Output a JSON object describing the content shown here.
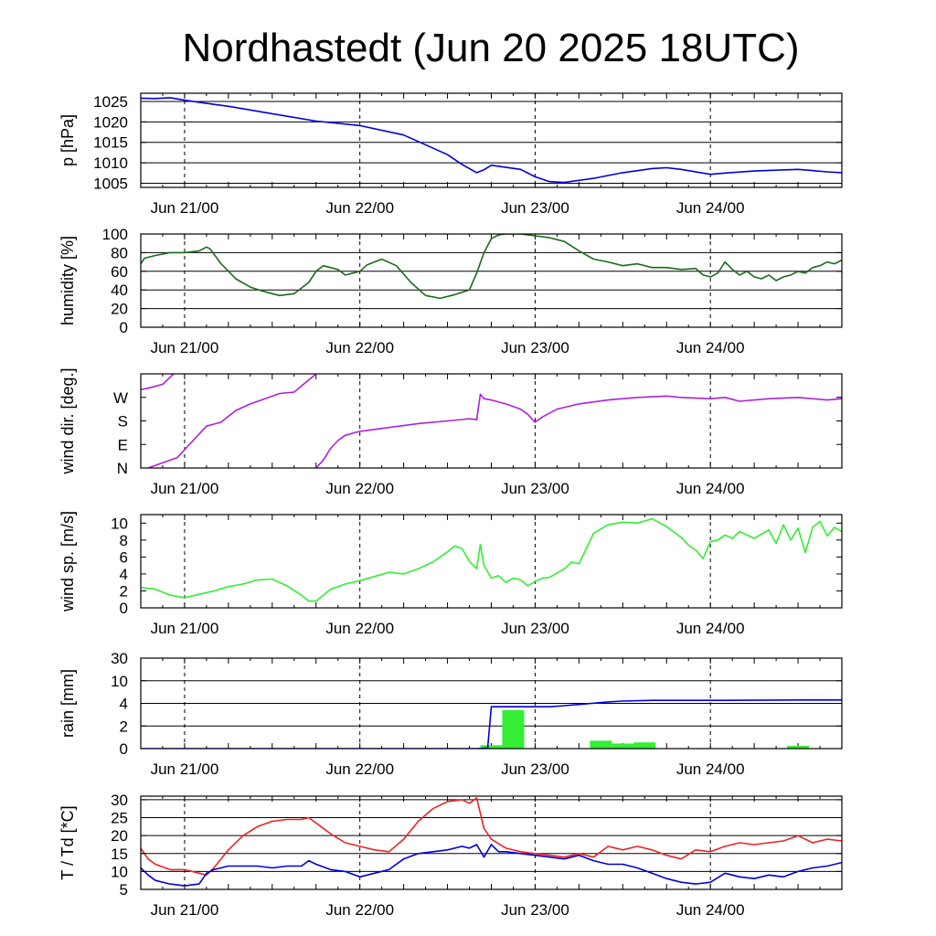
{
  "chart_data": {
    "title": "Nordhastedt (Jun 20 2025 18UTC)",
    "type": "line",
    "x_unit": "hours since Jun 20 18UTC",
    "x_range": [
      0,
      96
    ],
    "x_tick_labels": [
      {
        "x": 6,
        "label": "Jun 21/00"
      },
      {
        "x": 30,
        "label": "Jun 22/00"
      },
      {
        "x": 54,
        "label": "Jun 23/00"
      },
      {
        "x": 78,
        "label": "Jun 24/00"
      }
    ],
    "panels": [
      {
        "id": "pressure",
        "ylabel": "p [hPa]",
        "ylim": [
          1004,
          1027
        ],
        "yticks": [
          1005,
          1010,
          1015,
          1020,
          1025
        ],
        "ytick_labels": [
          "1005",
          "1010",
          "1015",
          "1020",
          "1025"
        ],
        "hgrid": [
          1005,
          1010,
          1015,
          1020,
          1025
        ],
        "series": [
          {
            "color": "#0000dd",
            "x": [
              0,
              2,
              4,
              6,
              8,
              12,
              18,
              24,
              30,
              36,
              42,
              44,
              46,
              47,
              48,
              52,
              54,
              56,
              58,
              62,
              66,
              70,
              72,
              74,
              78,
              80,
              84,
              90,
              94,
              96
            ],
            "y": [
              1025.8,
              1025.7,
              1025.9,
              1025.3,
              1024.8,
              1023.8,
              1022.0,
              1020.2,
              1019.1,
              1016.8,
              1012.0,
              1009.6,
              1007.6,
              1008.3,
              1009.4,
              1008.4,
              1006.6,
              1005.4,
              1005.2,
              1006.2,
              1007.6,
              1008.6,
              1008.8,
              1008.4,
              1007.2,
              1007.5,
              1008.0,
              1008.4,
              1007.8,
              1007.6
            ]
          }
        ]
      },
      {
        "id": "humidity",
        "ylabel": "humidity [%]",
        "ylim": [
          0,
          100
        ],
        "yticks": [
          0,
          20,
          40,
          60,
          80,
          100
        ],
        "ytick_labels": [
          "0",
          "20",
          "40",
          "60",
          "80",
          "100"
        ],
        "hgrid": [
          20,
          40,
          60,
          80,
          100
        ],
        "series": [
          {
            "color": "#1a6b1a",
            "x": [
              0,
              0.5,
              2,
              4,
              6,
              8,
              9,
              9.5,
              11,
              13,
              15,
              17,
              19,
              21,
              23,
              24,
              25,
              27,
              28,
              30,
              31,
              33,
              35,
              37,
              39,
              41,
              43,
              45,
              46,
              47,
              48,
              49,
              50,
              52,
              54,
              56,
              58,
              60,
              62,
              64,
              66,
              68,
              70,
              72,
              74,
              76,
              77,
              78,
              79,
              80,
              81,
              82,
              83,
              84,
              85,
              86,
              87,
              88,
              89,
              90,
              91,
              92,
              93,
              94,
              95,
              96
            ],
            "y": [
              68,
              74,
              77,
              80,
              80,
              82,
              86,
              84,
              68,
              52,
              43,
              38,
              34,
              36,
              48,
              60,
              66,
              62,
              56,
              60,
              67,
              73,
              66,
              48,
              34,
              31,
              35,
              40,
              58,
              80,
              95,
              99,
              100,
              100,
              98,
              96,
              92,
              82,
              73,
              70,
              66,
              68,
              64,
              64,
              62,
              63,
              56,
              54,
              58,
              70,
              62,
              56,
              60,
              54,
              52,
              56,
              50,
              54,
              56,
              60,
              58,
              64,
              66,
              70,
              68,
              72
            ]
          }
        ]
      },
      {
        "id": "wind_direction",
        "ylabel": "wind dir. [deg.]",
        "ylim": [
          0,
          360
        ],
        "yticks": [
          0,
          90,
          180,
          270
        ],
        "ytick_labels": [
          "N",
          "E",
          "S",
          "W"
        ],
        "hgrid": [],
        "series": [
          {
            "color": "#aa22dd",
            "x": [
              0,
              1,
              3,
              4.5
            ],
            "y": [
              300,
              305,
              320,
              360
            ]
          },
          {
            "color": "#aa22dd",
            "x": [
              1,
              3,
              5,
              6,
              7,
              9,
              11,
              13,
              15,
              17,
              19,
              21,
              24
            ],
            "y": [
              0,
              20,
              40,
              70,
              100,
              160,
              175,
              220,
              245,
              265,
              285,
              290,
              360
            ]
          },
          {
            "color": "#aa22dd",
            "x": [
              24,
              25,
              26,
              27,
              28,
              30,
              34,
              38,
              42,
              45,
              46,
              46.5,
              47,
              48,
              50,
              52,
              53,
              54,
              55,
              57,
              60,
              64,
              68,
              72,
              74,
              78,
              80,
              82,
              86,
              90,
              94,
              96
            ],
            "y": [
              0,
              30,
              75,
              105,
              125,
              140,
              155,
              170,
              180,
              188,
              185,
              282,
              265,
              260,
              245,
              225,
              205,
              175,
              195,
              225,
              245,
              260,
              270,
              275,
              270,
              265,
              270,
              255,
              265,
              270,
              260,
              265
            ]
          }
        ]
      },
      {
        "id": "wind_speed",
        "ylabel": "wind sp. [m/s]",
        "ylim": [
          0,
          11
        ],
        "yticks": [
          0,
          2,
          4,
          6,
          8,
          10
        ],
        "ytick_labels": [
          "0",
          "2",
          "4",
          "6",
          "8",
          "10"
        ],
        "hgrid": [],
        "series": [
          {
            "color": "#33ee33",
            "x": [
              0,
              2,
              4,
              6,
              8,
              10,
              12,
              14,
              16,
              18,
              20,
              22,
              23,
              24,
              26,
              28,
              30,
              32,
              34,
              36,
              38,
              40,
              42,
              43,
              44,
              45,
              46,
              46.5,
              47,
              48,
              49,
              50,
              51,
              52,
              53,
              54,
              55,
              56,
              58,
              59,
              60,
              61,
              62,
              64,
              66,
              68,
              70,
              72,
              74,
              75,
              76,
              77,
              78,
              79,
              80,
              81,
              82,
              84,
              86,
              87,
              88,
              89,
              90,
              91,
              92,
              93,
              94,
              95,
              96
            ],
            "y": [
              2.4,
              2.2,
              1.5,
              1.2,
              1.6,
              2.0,
              2.5,
              2.8,
              3.3,
              3.4,
              2.6,
              1.5,
              0.8,
              0.8,
              2.2,
              2.8,
              3.2,
              3.7,
              4.2,
              4.0,
              4.6,
              5.4,
              6.6,
              7.3,
              7.0,
              5.5,
              4.6,
              7.5,
              5.0,
              3.5,
              3.8,
              3.0,
              3.5,
              3.3,
              2.6,
              3.1,
              3.5,
              3.6,
              4.6,
              5.4,
              5.2,
              7.0,
              8.8,
              9.8,
              10.1,
              10.0,
              10.5,
              9.6,
              8.3,
              7.4,
              6.8,
              5.8,
              7.8,
              8.0,
              8.6,
              8.2,
              9.0,
              8.2,
              9.2,
              7.6,
              9.8,
              8.0,
              9.4,
              6.5,
              9.5,
              10.2,
              8.5,
              9.5,
              9.0
            ]
          }
        ]
      },
      {
        "id": "rain",
        "ylabel": "rain [mm]",
        "ylim": [
          0,
          30
        ],
        "scale": "nonlinear",
        "yticks": [
          0,
          2,
          4,
          10,
          30
        ],
        "ytick_labels": [
          "0",
          "2",
          "4",
          "10",
          "30"
        ],
        "hgrid": [
          2,
          4,
          10
        ],
        "bars": [
          {
            "color": "#33ee33",
            "x0": 46.5,
            "x1": 49.5,
            "value": 0.3
          },
          {
            "color": "#33ee33",
            "x0": 49.5,
            "x1": 52.5,
            "value": 3.4
          },
          {
            "color": "#33ee33",
            "x0": 57.5,
            "x1": 59.5,
            "value": 0.05
          },
          {
            "color": "#33ee33",
            "x0": 61.5,
            "x1": 64.5,
            "value": 0.7
          },
          {
            "color": "#33ee33",
            "x0": 64.5,
            "x1": 67.5,
            "value": 0.45
          },
          {
            "color": "#33ee33",
            "x0": 67.5,
            "x1": 70.5,
            "value": 0.55
          },
          {
            "color": "#33ee33",
            "x0": 76.5,
            "x1": 79.5,
            "value": 0.05
          },
          {
            "color": "#33ee33",
            "x0": 79.5,
            "x1": 82.5,
            "value": 0.05
          },
          {
            "color": "#33ee33",
            "x0": 88.5,
            "x1": 91.5,
            "value": 0.25
          }
        ],
        "series": [
          {
            "color": "#0000dd",
            "x": [
              0,
              46,
              47.5,
              48,
              53,
              56,
              58,
              60,
              64,
              66,
              70,
              80,
              90,
              96
            ],
            "y": [
              0,
              0,
              0.05,
              3.7,
              3.7,
              3.7,
              3.8,
              3.9,
              4.4,
              4.6,
              4.8,
              4.8,
              4.9,
              4.9
            ]
          }
        ]
      },
      {
        "id": "temperature",
        "ylabel": "T / Td [*C]",
        "ylim": [
          5,
          31
        ],
        "yticks": [
          5,
          10,
          15,
          20,
          25,
          30
        ],
        "ytick_labels": [
          "5",
          "10",
          "15",
          "20",
          "25",
          "30"
        ],
        "hgrid": [
          10,
          15,
          20,
          25,
          30
        ],
        "series": [
          {
            "color": "#ee2222",
            "x": [
              0,
              1,
              2,
              4,
              6,
              8,
              9,
              10,
              12,
              14,
              16,
              18,
              20,
              22,
              23,
              24,
              26,
              28,
              30,
              32,
              34,
              36,
              38,
              40,
              42,
              44,
              45,
              46,
              47,
              48,
              50,
              52,
              54,
              56,
              58,
              60,
              62,
              64,
              66,
              68,
              70,
              72,
              74,
              76,
              78,
              80,
              82,
              84,
              86,
              88,
              90,
              92,
              94,
              96
            ],
            "y": [
              16.5,
              13.5,
              12.0,
              10.5,
              10.5,
              9.5,
              9.0,
              11.0,
              16.0,
              20.0,
              22.5,
              24.0,
              24.5,
              24.5,
              25.0,
              23.5,
              20.5,
              18.0,
              17.0,
              16.0,
              15.5,
              19.0,
              24.0,
              27.5,
              29.5,
              30.0,
              29.0,
              30.5,
              22.0,
              19.0,
              16.5,
              15.5,
              15.0,
              14.5,
              14.0,
              15.0,
              14.0,
              17.0,
              16.0,
              17.0,
              16.0,
              14.5,
              13.5,
              16.0,
              15.5,
              17.0,
              18.0,
              17.5,
              18.0,
              18.5,
              20.0,
              18.0,
              19.0,
              18.5
            ]
          },
          {
            "color": "#0000dd",
            "x": [
              0,
              1,
              2,
              4,
              6,
              8,
              9,
              10,
              12,
              14,
              16,
              18,
              20,
              22,
              23,
              24,
              26,
              28,
              30,
              32,
              34,
              36,
              38,
              40,
              42,
              44,
              45,
              46,
              47,
              48,
              49,
              50,
              52,
              54,
              56,
              58,
              60,
              62,
              64,
              66,
              68,
              70,
              72,
              74,
              76,
              78,
              80,
              82,
              84,
              86,
              88,
              90,
              92,
              94,
              96
            ],
            "y": [
              11.0,
              9.0,
              7.5,
              6.5,
              6.0,
              6.5,
              9.5,
              10.5,
              11.5,
              11.5,
              11.5,
              11.0,
              11.5,
              11.5,
              13.0,
              12.0,
              10.5,
              10.0,
              8.5,
              9.5,
              10.5,
              13.5,
              15.0,
              15.5,
              16.0,
              17.0,
              16.5,
              17.5,
              14.0,
              17.5,
              15.5,
              15.5,
              15.0,
              14.5,
              14.0,
              13.5,
              14.5,
              13.0,
              12.0,
              12.0,
              11.0,
              9.5,
              8.0,
              7.0,
              6.5,
              7.0,
              9.5,
              8.5,
              8.0,
              9.0,
              8.5,
              10.0,
              11.0,
              11.5,
              12.5
            ]
          }
        ]
      }
    ]
  }
}
